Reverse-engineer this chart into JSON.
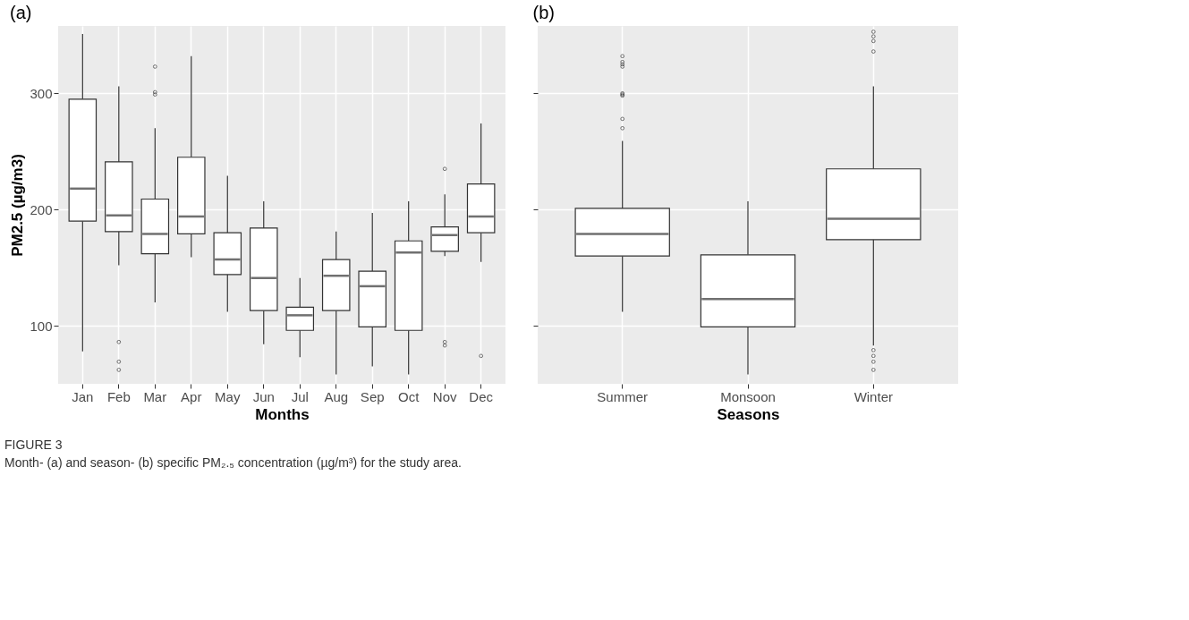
{
  "chart_data": [
    {
      "type": "box",
      "title": "(a)",
      "xlabel": "Months",
      "ylabel": "PM2.5 (µg/m3)",
      "categories": [
        "Jan",
        "Feb",
        "Mar",
        "Apr",
        "May",
        "Jun",
        "Jul",
        "Aug",
        "Sep",
        "Oct",
        "Nov",
        "Dec"
      ],
      "boxes": [
        {
          "low": 78,
          "q1": 190,
          "median": 218,
          "q3": 295,
          "high": 351
        },
        {
          "low": 152,
          "q1": 181,
          "median": 195,
          "q3": 241,
          "high": 306,
          "outliers": [
            86,
            69,
            62
          ]
        },
        {
          "low": 120,
          "q1": 162,
          "median": 179,
          "q3": 209,
          "high": 270,
          "outliers": [
            323,
            301,
            299
          ]
        },
        {
          "low": 159,
          "q1": 179,
          "median": 194,
          "q3": 245,
          "high": 332
        },
        {
          "low": 112,
          "q1": 144,
          "median": 157,
          "q3": 180,
          "high": 229
        },
        {
          "low": 84,
          "q1": 113,
          "median": 141,
          "q3": 184,
          "high": 207
        },
        {
          "low": 73,
          "q1": 96,
          "median": 109,
          "q3": 116,
          "high": 141
        },
        {
          "low": 58,
          "q1": 113,
          "median": 143,
          "q3": 157,
          "high": 181
        },
        {
          "low": 65,
          "q1": 99,
          "median": 134,
          "q3": 147,
          "high": 197
        },
        {
          "low": 58,
          "q1": 96,
          "median": 163,
          "q3": 173,
          "high": 207
        },
        {
          "low": 160,
          "q1": 164,
          "median": 178,
          "q3": 185,
          "high": 213,
          "outliers": [
            235,
            86,
            83
          ]
        },
        {
          "low": 155,
          "q1": 180,
          "median": 194,
          "q3": 222,
          "high": 274,
          "outliers": [
            74
          ]
        }
      ],
      "ylim": [
        50,
        358
      ],
      "yticks": [
        100,
        200,
        300
      ],
      "grid": true,
      "annotations": [
        "FIGURE 3",
        "Month- (a) and season- (b) specific PM₂.₅ concentration (µg/m³) for the study area."
      ]
    },
    {
      "type": "box",
      "title": "(b)",
      "xlabel": "Seasons",
      "categories": [
        "Summer",
        "Monsoon",
        "Winter"
      ],
      "boxes": [
        {
          "low": 112,
          "q1": 160,
          "median": 179,
          "q3": 201,
          "high": 259,
          "outliers": [
            332,
            327,
            325,
            323,
            300,
            299,
            298,
            278,
            270
          ]
        },
        {
          "low": 58,
          "q1": 99,
          "median": 123,
          "q3": 161,
          "high": 207
        },
        {
          "low": 83,
          "q1": 174,
          "median": 192,
          "q3": 235,
          "high": 306,
          "outliers": [
            353,
            349,
            345,
            336,
            79,
            74,
            69,
            62
          ]
        }
      ],
      "ylim": [
        50,
        358
      ],
      "yticks": [
        100,
        200,
        300
      ],
      "grid": true,
      "tick_labels": "x"
    }
  ]
}
